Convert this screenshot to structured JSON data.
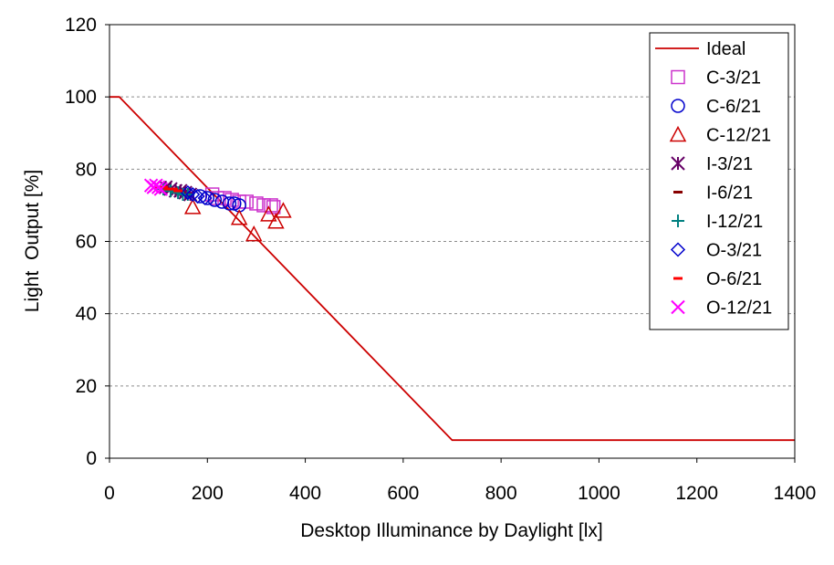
{
  "chart_data": {
    "type": "scatter",
    "xlabel": "Desktop Illuminance by Daylight [lx]",
    "ylabel": "Light  Output [%]",
    "xlim": [
      0,
      1400
    ],
    "ylim": [
      0,
      120
    ],
    "xticks": [
      "0",
      "200",
      "400",
      "600",
      "800",
      "1000",
      "1200",
      "1400"
    ],
    "yticks": [
      "0",
      "20",
      "40",
      "60",
      "80",
      "100",
      "120"
    ],
    "grid": "horizontal dashed",
    "legend_position": "top-right",
    "series": [
      {
        "name": "Ideal",
        "kind": "line",
        "color": "#cc0000",
        "points": [
          [
            0,
            100
          ],
          [
            20,
            100
          ],
          [
            700,
            5
          ],
          [
            1400,
            5
          ]
        ]
      },
      {
        "name": "C-3/21",
        "kind": "marker",
        "marker": "square",
        "color": "#cc33cc",
        "points": [
          [
            210,
            73
          ],
          [
            220,
            72
          ],
          [
            235,
            72
          ],
          [
            250,
            71.5
          ],
          [
            265,
            71
          ],
          [
            280,
            71
          ],
          [
            300,
            70.5
          ],
          [
            315,
            70
          ],
          [
            330,
            70
          ],
          [
            335,
            69.5
          ]
        ]
      },
      {
        "name": "C-6/21",
        "kind": "marker",
        "marker": "circle",
        "color": "#0000cc",
        "points": [
          [
            185,
            72.5
          ],
          [
            200,
            72
          ],
          [
            215,
            71.5
          ],
          [
            230,
            71
          ],
          [
            245,
            70.5
          ],
          [
            255,
            70.5
          ],
          [
            265,
            70
          ]
        ]
      },
      {
        "name": "C-12/21",
        "kind": "marker",
        "marker": "triangle",
        "color": "#cc0000",
        "points": [
          [
            170,
            69.5
          ],
          [
            265,
            66.5
          ],
          [
            295,
            62
          ],
          [
            325,
            67.5
          ],
          [
            340,
            65.5
          ],
          [
            355,
            68.5
          ]
        ]
      },
      {
        "name": "I-3/21",
        "kind": "marker",
        "marker": "asterisk",
        "color": "#660066",
        "points": [
          [
            115,
            75
          ],
          [
            125,
            74.5
          ],
          [
            135,
            74
          ],
          [
            145,
            74
          ],
          [
            155,
            73.5
          ],
          [
            165,
            73
          ]
        ]
      },
      {
        "name": "I-6/21",
        "kind": "marker",
        "marker": "dash",
        "color": "#880000",
        "points": [
          [
            105,
            75
          ],
          [
            115,
            74.5
          ],
          [
            125,
            74.5
          ],
          [
            135,
            74
          ],
          [
            145,
            73.5
          ]
        ]
      },
      {
        "name": "I-12/21",
        "kind": "marker",
        "marker": "plus",
        "color": "#008080",
        "points": [
          [
            110,
            74.5
          ],
          [
            125,
            74
          ],
          [
            140,
            73.5
          ],
          [
            150,
            73
          ],
          [
            160,
            73
          ]
        ]
      },
      {
        "name": "O-3/21",
        "kind": "marker",
        "marker": "diamond",
        "color": "#0000cc",
        "points": [
          [
            160,
            73.5
          ],
          [
            170,
            73
          ],
          [
            180,
            72.5
          ],
          [
            195,
            72
          ]
        ]
      },
      {
        "name": "O-6/21",
        "kind": "marker",
        "marker": "dash",
        "color": "#ff0000",
        "points": [
          [
            100,
            75
          ],
          [
            110,
            75
          ],
          [
            120,
            74.5
          ],
          [
            130,
            74.5
          ],
          [
            140,
            74
          ]
        ]
      },
      {
        "name": "O-12/21",
        "kind": "marker",
        "marker": "x",
        "color": "#ff00ff",
        "points": [
          [
            85,
            75.5
          ],
          [
            90,
            75
          ],
          [
            95,
            75.5
          ],
          [
            100,
            75
          ],
          [
            105,
            74.5
          ]
        ]
      }
    ]
  }
}
